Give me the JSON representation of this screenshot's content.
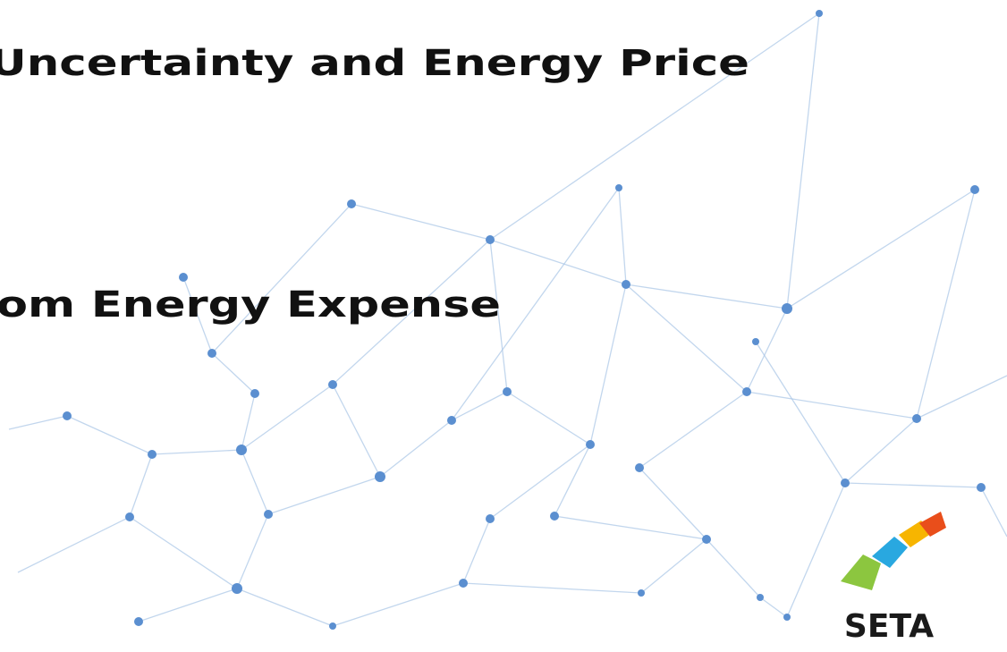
{
  "slide": {
    "title_line_1": "Uncertainty and Energy Price",
    "title_line_2": "om Energy Expense",
    "logo": "SETA"
  }
}
